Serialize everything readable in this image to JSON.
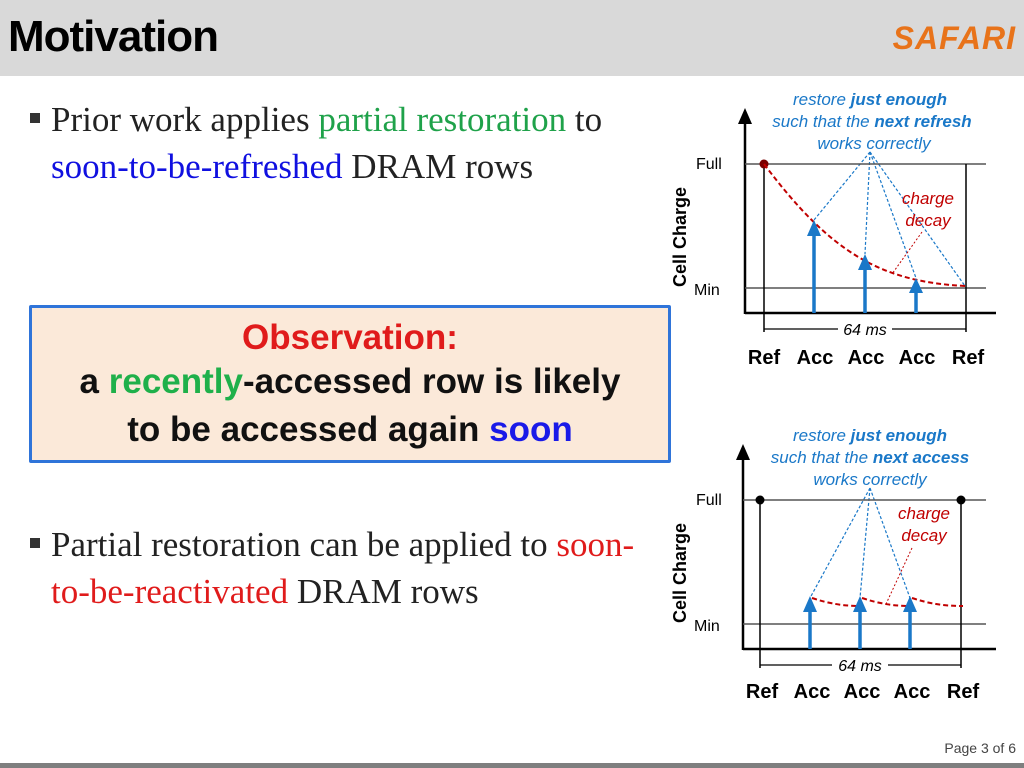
{
  "header": {
    "title": "Motivation",
    "logo_text": "SAFARI"
  },
  "bullet1": {
    "seg1": "Prior work applies ",
    "seg2": "partial restoration",
    "seg3": " to ",
    "seg4": "soon-to-be-refreshed",
    "seg5": " DRAM rows"
  },
  "observation": {
    "title": "Observation:",
    "line1_a": "a ",
    "line1_b": "recently",
    "line1_c": "-accessed row is likely",
    "line2_a": "to be accessed again ",
    "line2_b": "soon"
  },
  "bullet2": {
    "seg1": "Partial restoration can be applied to ",
    "seg2": "soon-to-be-reactivated",
    "seg3": " DRAM rows"
  },
  "diagram_top": {
    "caption_a": "restore ",
    "caption_b": "just enough",
    "caption_c": "such that the ",
    "caption_d": "next refresh",
    "caption_e": "works correctly",
    "y_label": "Cell Charge",
    "full_label": "Full",
    "min_label": "Min",
    "decay_1": "charge",
    "decay_2": "decay",
    "interval": "64 ms",
    "x_ref1": "Ref",
    "x_acc1": "Acc",
    "x_acc2": "Acc",
    "x_acc3": "Acc",
    "x_ref2": "Ref"
  },
  "diagram_bottom": {
    "caption_a": "restore ",
    "caption_b": "just enough",
    "caption_c": "such that the ",
    "caption_d": "next access",
    "caption_e": "works correctly",
    "y_label": "Cell Charge",
    "full_label": "Full",
    "min_label": "Min",
    "decay_1": "charge",
    "decay_2": "decay",
    "interval": "64 ms",
    "x_ref1": "Ref",
    "x_acc1": "Acc",
    "x_acc2": "Acc",
    "x_acc3": "Acc",
    "x_ref2": "Ref"
  },
  "footer": {
    "page": "Page 3 of 6"
  },
  "colors": {
    "accent_blue": "#1a78c8",
    "decay_red": "#c00000",
    "highlight_green": "#1fa24a",
    "logo_orange": "#e8731a"
  }
}
